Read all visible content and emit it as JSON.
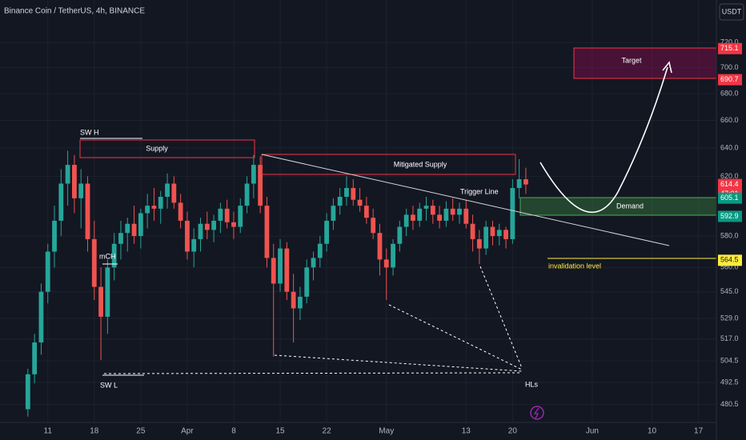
{
  "chart_data": {
    "type": "candlestick",
    "title": "Binance Coin / TetherUS, 4h, BINANCE",
    "currency": "USDT",
    "log_y": true,
    "grid": true,
    "up_color": "#26a69a",
    "down_color": "#ef5350",
    "x": [
      8,
      9,
      10,
      11,
      12,
      13,
      14,
      15,
      16,
      17,
      18,
      19,
      20,
      21,
      22,
      23,
      24,
      25,
      26,
      27,
      28,
      29,
      30,
      31,
      32,
      33,
      34,
      35,
      36,
      37,
      38,
      39,
      40,
      41,
      42,
      43,
      44,
      45,
      46,
      47,
      48,
      49,
      50,
      51,
      52,
      53,
      54,
      55,
      56,
      57,
      58,
      59,
      60,
      61,
      62,
      63,
      64,
      65,
      66,
      67,
      68,
      69,
      70,
      71,
      72,
      73,
      74,
      75,
      76,
      77,
      78,
      79,
      80,
      81,
      82,
      83
    ],
    "open": [
      478,
      497,
      515,
      545,
      570,
      590,
      615,
      628,
      605,
      615,
      578,
      548,
      530,
      560,
      575,
      582,
      588,
      580,
      595,
      600,
      598,
      606,
      615,
      602,
      590,
      570,
      578,
      588,
      584,
      590,
      598,
      589,
      586,
      600,
      615,
      628,
      600,
      566,
      550,
      572,
      545,
      535,
      542,
      560,
      566,
      575,
      590,
      600,
      606,
      612,
      604,
      600,
      592,
      582,
      565,
      560,
      575,
      586,
      594,
      590,
      598,
      600,
      594,
      590,
      598,
      594,
      598,
      588,
      578,
      572,
      586,
      580,
      584,
      578,
      612,
      618
    ],
    "high": [
      500,
      520,
      550,
      575,
      600,
      625,
      638,
      635,
      625,
      620,
      590,
      560,
      565,
      582,
      590,
      592,
      600,
      598,
      608,
      612,
      610,
      622,
      620,
      608,
      596,
      585,
      592,
      596,
      594,
      602,
      604,
      596,
      605,
      620,
      635,
      634,
      606,
      575,
      578,
      576,
      556,
      548,
      565,
      570,
      580,
      595,
      605,
      612,
      620,
      618,
      612,
      606,
      598,
      588,
      572,
      578,
      590,
      598,
      600,
      602,
      606,
      604,
      600,
      603,
      605,
      602,
      604,
      594,
      584,
      590,
      590,
      588,
      586,
      618,
      632,
      626
    ],
    "low": [
      474,
      492,
      508,
      538,
      560,
      580,
      600,
      595,
      585,
      570,
      540,
      505,
      520,
      552,
      565,
      570,
      575,
      572,
      585,
      590,
      588,
      598,
      598,
      585,
      565,
      560,
      570,
      578,
      576,
      582,
      585,
      578,
      582,
      595,
      605,
      595,
      560,
      507,
      545,
      540,
      515,
      528,
      538,
      552,
      560,
      570,
      584,
      594,
      600,
      600,
      596,
      588,
      578,
      555,
      540,
      555,
      570,
      580,
      584,
      586,
      590,
      588,
      585,
      586,
      590,
      588,
      585,
      570,
      562,
      568,
      574,
      574,
      572,
      575,
      605,
      608
    ],
    "close": [
      497,
      515,
      545,
      570,
      590,
      615,
      628,
      605,
      615,
      578,
      548,
      530,
      560,
      575,
      582,
      588,
      580,
      595,
      600,
      598,
      606,
      615,
      602,
      590,
      570,
      578,
      588,
      584,
      590,
      598,
      589,
      586,
      600,
      615,
      628,
      600,
      566,
      550,
      572,
      545,
      535,
      542,
      560,
      566,
      575,
      590,
      600,
      606,
      612,
      604,
      600,
      592,
      582,
      565,
      560,
      575,
      586,
      594,
      590,
      598,
      600,
      594,
      590,
      598,
      594,
      598,
      588,
      578,
      572,
      586,
      580,
      584,
      578,
      612,
      618,
      614.4
    ],
    "xlim": [
      3.8,
      111.7
    ],
    "xticks": [
      11,
      18,
      25,
      {
        "value": 32,
        "label": "Apr"
      },
      {
        "value": 39,
        "label": "8"
      },
      {
        "value": 46,
        "label": "15"
      },
      {
        "value": 53,
        "label": "22"
      },
      {
        "value": 62,
        "label": "May"
      },
      {
        "value": 74,
        "label": "13"
      },
      {
        "value": 81,
        "label": "20"
      },
      {
        "value": 93,
        "label": "Jun"
      },
      {
        "value": 102,
        "label": "10"
      },
      {
        "value": 109,
        "label": "17"
      }
    ],
    "ylim": [
      471,
      755
    ],
    "yticks": [
      480.5,
      492.5,
      504.5,
      {
        "value": 517,
        "label": "517.0"
      },
      {
        "value": 529,
        "label": "529.0"
      },
      {
        "value": 545,
        "label": "545.0"
      },
      {
        "value": 560,
        "label": "560.0"
      },
      {
        "value": 580,
        "label": "580.0"
      },
      {
        "value": 620,
        "label": "620.0"
      },
      {
        "value": 640,
        "label": "640.0"
      },
      {
        "value": 660,
        "label": "660.0"
      },
      {
        "value": 680,
        "label": "680.0"
      },
      {
        "value": 700,
        "label": "700.0"
      },
      {
        "value": 720,
        "label": "720.0"
      }
    ],
    "price_labels": [
      {
        "value": 715.1,
        "color": "#f23645"
      },
      {
        "value": 690.7,
        "color": "#f23645"
      },
      {
        "value": 614.4,
        "color": "#f23645"
      },
      {
        "value": 605.1,
        "color": "#089981"
      },
      {
        "value": 592.9,
        "color": "#089981"
      },
      {
        "value": 564.5,
        "color": "#ffeb3b"
      }
    ],
    "countdown": "47:01",
    "annotations": [
      "SW H",
      "SW L",
      "mCH",
      "Supply",
      "Mitigated Supply",
      "Trigger Line",
      "Target",
      "Demand",
      "invalidation level",
      "HLs"
    ]
  }
}
